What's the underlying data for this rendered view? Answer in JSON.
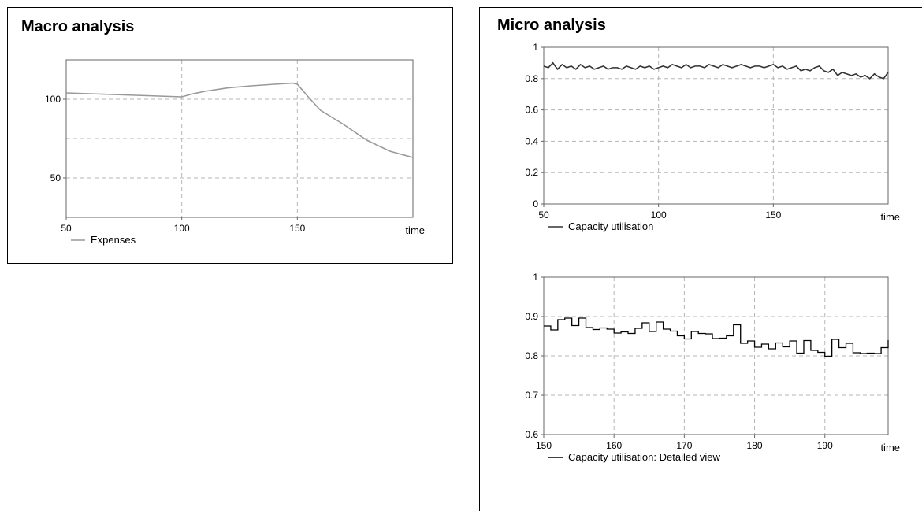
{
  "macro": {
    "title": "Macro analysis",
    "chart": {
      "type": "line",
      "xlabel": "time",
      "xlim": [
        50,
        200
      ],
      "ylim": [
        25,
        125
      ],
      "xticks": [
        50,
        100,
        150
      ],
      "yticks": [
        50,
        100
      ],
      "grid": true,
      "gridlines_y": [
        50,
        75,
        100
      ],
      "legend_position": "bottom-left",
      "series": [
        {
          "name": "Expenses",
          "color": "#999999",
          "x": [
            50,
            60,
            70,
            80,
            90,
            100,
            105,
            110,
            120,
            130,
            140,
            148,
            150,
            155,
            160,
            170,
            180,
            190,
            200
          ],
          "y": [
            104,
            103.5,
            103,
            102.5,
            102,
            101.5,
            103.5,
            105,
            107.2,
            108.5,
            109.5,
            110.2,
            109.5,
            101,
            93,
            84,
            74,
            67,
            63
          ]
        }
      ]
    }
  },
  "micro": {
    "title": "Micro analysis",
    "charts": [
      {
        "type": "line",
        "xlabel": "time",
        "xlim": [
          50,
          200
        ],
        "ylim": [
          0,
          1
        ],
        "xticks": [
          50,
          100,
          150
        ],
        "yticks": [
          "0",
          "0.2",
          "0.4",
          "0.6",
          "0.8",
          "1"
        ],
        "grid": true,
        "legend_position": "bottom-left",
        "series": [
          {
            "name": "Capacity utilisation",
            "color": "#333333",
            "x": [
              50,
              52,
              54,
              56,
              58,
              60,
              62,
              64,
              66,
              68,
              70,
              72,
              74,
              76,
              78,
              80,
              82,
              84,
              86,
              88,
              90,
              92,
              94,
              96,
              98,
              100,
              102,
              104,
              106,
              108,
              110,
              112,
              114,
              116,
              118,
              120,
              122,
              124,
              126,
              128,
              130,
              132,
              134,
              136,
              138,
              140,
              142,
              144,
              146,
              148,
              150,
              152,
              154,
              156,
              158,
              160,
              162,
              164,
              166,
              168,
              170,
              172,
              174,
              176,
              178,
              180,
              182,
              184,
              186,
              188,
              190,
              192,
              194,
              196,
              198,
              200
            ],
            "y": [
              0.88,
              0.87,
              0.9,
              0.86,
              0.89,
              0.87,
              0.88,
              0.86,
              0.89,
              0.87,
              0.88,
              0.86,
              0.87,
              0.88,
              0.86,
              0.87,
              0.87,
              0.86,
              0.88,
              0.87,
              0.86,
              0.88,
              0.87,
              0.88,
              0.86,
              0.87,
              0.88,
              0.87,
              0.89,
              0.88,
              0.87,
              0.89,
              0.87,
              0.88,
              0.88,
              0.87,
              0.89,
              0.88,
              0.87,
              0.89,
              0.88,
              0.87,
              0.88,
              0.89,
              0.88,
              0.87,
              0.88,
              0.88,
              0.87,
              0.88,
              0.89,
              0.87,
              0.88,
              0.86,
              0.87,
              0.88,
              0.85,
              0.86,
              0.85,
              0.87,
              0.88,
              0.85,
              0.84,
              0.86,
              0.82,
              0.84,
              0.83,
              0.82,
              0.83,
              0.81,
              0.82,
              0.8,
              0.83,
              0.81,
              0.8,
              0.84
            ]
          }
        ]
      },
      {
        "type": "line",
        "xlabel": "time",
        "xlim": [
          150,
          199
        ],
        "ylim": [
          0.6,
          1
        ],
        "xticks": [
          150,
          160,
          170,
          180,
          190
        ],
        "yticks": [
          "0.6",
          "0.7",
          "0.8",
          "0.9",
          "1"
        ],
        "grid": true,
        "step": true,
        "legend_position": "bottom-left",
        "series": [
          {
            "name": "Capacity utilisation: Detailed view",
            "color": "#000000",
            "x": [
              150,
              151,
              152,
              153,
              154,
              155,
              156,
              157,
              158,
              159,
              160,
              161,
              162,
              163,
              164,
              165,
              166,
              167,
              168,
              169,
              170,
              171,
              172,
              173,
              174,
              175,
              176,
              177,
              178,
              179,
              180,
              181,
              182,
              183,
              184,
              185,
              186,
              187,
              188,
              189,
              190,
              191,
              192,
              193,
              194,
              195,
              196,
              197,
              198,
              199
            ],
            "y": [
              0.876,
              0.866,
              0.892,
              0.896,
              0.877,
              0.896,
              0.872,
              0.867,
              0.871,
              0.868,
              0.858,
              0.861,
              0.857,
              0.87,
              0.884,
              0.862,
              0.886,
              0.868,
              0.863,
              0.851,
              0.843,
              0.862,
              0.857,
              0.856,
              0.844,
              0.845,
              0.851,
              0.879,
              0.832,
              0.838,
              0.822,
              0.83,
              0.818,
              0.833,
              0.823,
              0.838,
              0.807,
              0.839,
              0.814,
              0.809,
              0.799,
              0.842,
              0.821,
              0.832,
              0.808,
              0.806,
              0.807,
              0.806,
              0.821,
              0.84
            ]
          }
        ]
      }
    ]
  }
}
